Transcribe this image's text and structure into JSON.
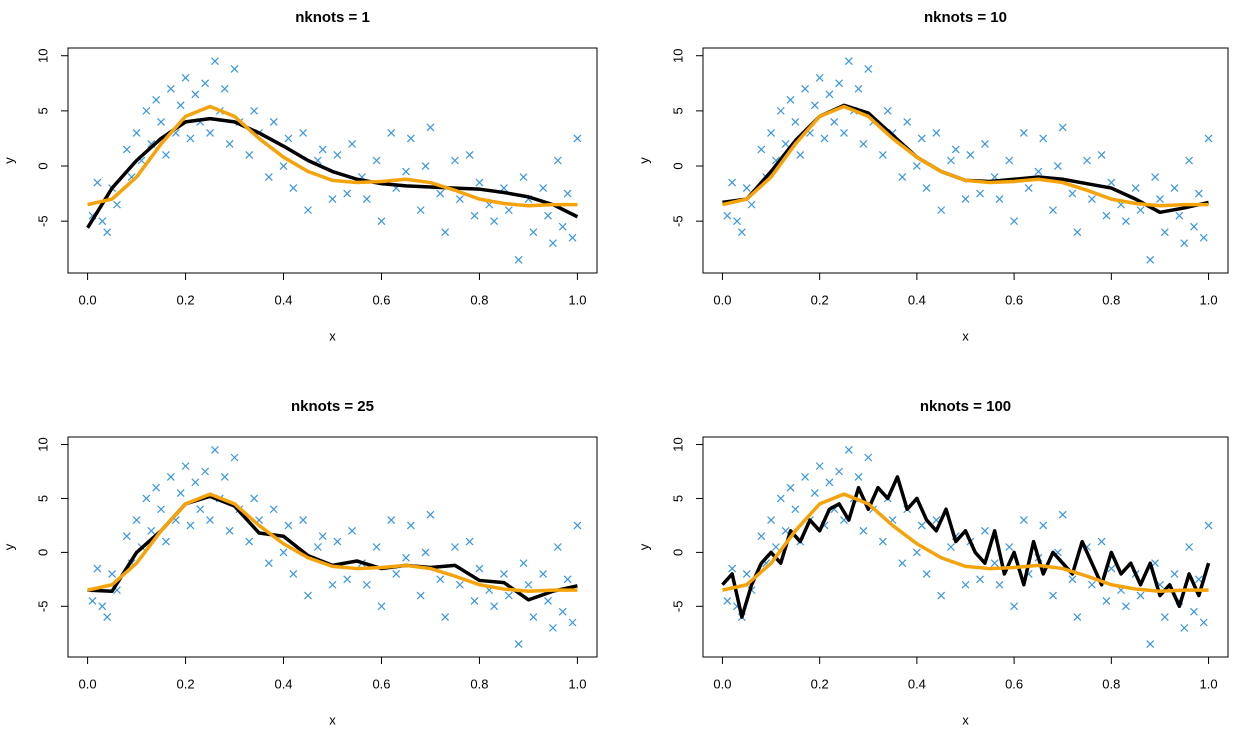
{
  "chart_data": [
    {
      "type": "scatter",
      "title": "nknots = 1",
      "xlabel": "x",
      "ylabel": "y",
      "xlim": [
        -0.04,
        1.04
      ],
      "ylim": [
        -9.7,
        10.7
      ],
      "xticks": [
        {
          "value": 0,
          "label": "0.0"
        },
        0.2,
        0.4,
        0.6,
        0.8,
        {
          "value": 1,
          "label": "1.0"
        }
      ],
      "yticks": [
        -5,
        0,
        5,
        10
      ],
      "points": {
        "color": "#3a96dd",
        "x": [
          0.01,
          0.02,
          0.03,
          0.04,
          0.05,
          0.06,
          0.08,
          0.09,
          0.1,
          0.11,
          0.12,
          0.13,
          0.14,
          0.15,
          0.16,
          0.17,
          0.18,
          0.19,
          0.2,
          0.21,
          0.22,
          0.23,
          0.24,
          0.25,
          0.26,
          0.27,
          0.28,
          0.29,
          0.3,
          0.31,
          0.33,
          0.34,
          0.35,
          0.37,
          0.38,
          0.4,
          0.41,
          0.42,
          0.44,
          0.45,
          0.47,
          0.48,
          0.5,
          0.51,
          0.53,
          0.54,
          0.56,
          0.57,
          0.59,
          0.6,
          0.62,
          0.63,
          0.65,
          0.66,
          0.68,
          0.69,
          0.7,
          0.72,
          0.73,
          0.75,
          0.76,
          0.78,
          0.79,
          0.8,
          0.82,
          0.83,
          0.85,
          0.86,
          0.88,
          0.89,
          0.9,
          0.91,
          0.93,
          0.94,
          0.95,
          0.96,
          0.97,
          0.98,
          0.99,
          1.0
        ],
        "y": [
          -4.5,
          -1.5,
          -5,
          -6,
          -2,
          -3.5,
          1.5,
          -1,
          3,
          0.5,
          5,
          2,
          6,
          4,
          1,
          7,
          3,
          5.5,
          8,
          2.5,
          6.5,
          4,
          7.5,
          3,
          9.5,
          5,
          7,
          2,
          8.8,
          4,
          1,
          5,
          3,
          -1,
          4,
          0,
          2.5,
          -2,
          3,
          -4,
          0.5,
          1.5,
          -3,
          1,
          -2.5,
          2,
          -1,
          -3,
          0.5,
          -5,
          3,
          -2,
          -0.5,
          2.5,
          -4,
          0,
          3.5,
          -2.5,
          -6,
          0.5,
          -3,
          1,
          -4.5,
          -1.5,
          -3.5,
          -5,
          -2,
          -4,
          -8.5,
          -1,
          -3,
          -6,
          -2,
          -4.5,
          -7,
          0.5,
          -5.5,
          -2.5,
          -6.5,
          2.5
        ]
      },
      "lines": [
        {
          "color": "#000000",
          "x": [
            0,
            0.05,
            0.1,
            0.15,
            0.2,
            0.25,
            0.3,
            0.35,
            0.4,
            0.45,
            0.5,
            0.55,
            0.6,
            0.65,
            0.7,
            0.75,
            0.8,
            0.85,
            0.9,
            0.95,
            1
          ],
          "values": [
            -5.6,
            -2,
            0.5,
            2.5,
            4,
            4.3,
            4,
            3,
            1.8,
            0.5,
            -0.5,
            -1.2,
            -1.6,
            -1.8,
            -1.9,
            -2,
            -2.1,
            -2.4,
            -2.8,
            -3.5,
            -4.6
          ]
        },
        {
          "color": "#f5a30a",
          "x": [
            0,
            0.05,
            0.1,
            0.15,
            0.2,
            0.25,
            0.3,
            0.35,
            0.4,
            0.45,
            0.5,
            0.55,
            0.6,
            0.65,
            0.7,
            0.75,
            0.8,
            0.85,
            0.9,
            0.95,
            1
          ],
          "values": [
            -3.5,
            -3,
            -1,
            2,
            4.5,
            5.4,
            4.5,
            2.5,
            0.8,
            -0.5,
            -1.3,
            -1.5,
            -1.4,
            -1.2,
            -1.5,
            -2.2,
            -3,
            -3.4,
            -3.6,
            -3.5,
            -3.5
          ]
        }
      ]
    },
    {
      "type": "scatter",
      "title": "nknots = 10",
      "xlabel": "x",
      "ylabel": "y",
      "xlim": [
        -0.04,
        1.04
      ],
      "ylim": [
        -9.7,
        10.7
      ],
      "xticks": [
        {
          "value": 0,
          "label": "0.0"
        },
        0.2,
        0.4,
        0.6,
        0.8,
        {
          "value": 1,
          "label": "1.0"
        }
      ],
      "yticks": [
        -5,
        0,
        5,
        10
      ],
      "points": {
        "color": "#3a96dd",
        "x": [
          0.01,
          0.02,
          0.03,
          0.04,
          0.05,
          0.06,
          0.08,
          0.09,
          0.1,
          0.11,
          0.12,
          0.13,
          0.14,
          0.15,
          0.16,
          0.17,
          0.18,
          0.19,
          0.2,
          0.21,
          0.22,
          0.23,
          0.24,
          0.25,
          0.26,
          0.27,
          0.28,
          0.29,
          0.3,
          0.31,
          0.33,
          0.34,
          0.35,
          0.37,
          0.38,
          0.4,
          0.41,
          0.42,
          0.44,
          0.45,
          0.47,
          0.48,
          0.5,
          0.51,
          0.53,
          0.54,
          0.56,
          0.57,
          0.59,
          0.6,
          0.62,
          0.63,
          0.65,
          0.66,
          0.68,
          0.69,
          0.7,
          0.72,
          0.73,
          0.75,
          0.76,
          0.78,
          0.79,
          0.8,
          0.82,
          0.83,
          0.85,
          0.86,
          0.88,
          0.89,
          0.9,
          0.91,
          0.93,
          0.94,
          0.95,
          0.96,
          0.97,
          0.98,
          0.99,
          1.0
        ],
        "y": [
          -4.5,
          -1.5,
          -5,
          -6,
          -2,
          -3.5,
          1.5,
          -1,
          3,
          0.5,
          5,
          2,
          6,
          4,
          1,
          7,
          3,
          5.5,
          8,
          2.5,
          6.5,
          4,
          7.5,
          3,
          9.5,
          5,
          7,
          2,
          8.8,
          4,
          1,
          5,
          3,
          -1,
          4,
          0,
          2.5,
          -2,
          3,
          -4,
          0.5,
          1.5,
          -3,
          1,
          -2.5,
          2,
          -1,
          -3,
          0.5,
          -5,
          3,
          -2,
          -0.5,
          2.5,
          -4,
          0,
          3.5,
          -2.5,
          -6,
          0.5,
          -3,
          1,
          -4.5,
          -1.5,
          -3.5,
          -5,
          -2,
          -4,
          -8.5,
          -1,
          -3,
          -6,
          -2,
          -4.5,
          -7,
          0.5,
          -5.5,
          -2.5,
          -6.5,
          2.5
        ]
      },
      "lines": [
        {
          "color": "#000000",
          "x": [
            0,
            0.05,
            0.1,
            0.15,
            0.2,
            0.25,
            0.3,
            0.35,
            0.4,
            0.45,
            0.5,
            0.55,
            0.6,
            0.65,
            0.7,
            0.75,
            0.8,
            0.85,
            0.9,
            0.95,
            1
          ],
          "values": [
            -3.3,
            -3,
            -0.5,
            2.3,
            4.5,
            5.5,
            4.8,
            2.8,
            0.8,
            -0.5,
            -1.3,
            -1.4,
            -1.2,
            -1,
            -1.2,
            -1.6,
            -2,
            -3,
            -4.2,
            -3.8,
            -3.3
          ]
        },
        {
          "color": "#f5a30a",
          "x": [
            0,
            0.05,
            0.1,
            0.15,
            0.2,
            0.25,
            0.3,
            0.35,
            0.4,
            0.45,
            0.5,
            0.55,
            0.6,
            0.65,
            0.7,
            0.75,
            0.8,
            0.85,
            0.9,
            0.95,
            1
          ],
          "values": [
            -3.5,
            -3,
            -1,
            2,
            4.5,
            5.4,
            4.5,
            2.5,
            0.8,
            -0.5,
            -1.3,
            -1.5,
            -1.4,
            -1.2,
            -1.5,
            -2.2,
            -3,
            -3.4,
            -3.6,
            -3.5,
            -3.5
          ]
        }
      ]
    },
    {
      "type": "scatter",
      "title": "nknots = 25",
      "xlabel": "x",
      "ylabel": "y",
      "xlim": [
        -0.04,
        1.04
      ],
      "ylim": [
        -9.7,
        10.7
      ],
      "xticks": [
        {
          "value": 0,
          "label": "0.0"
        },
        0.2,
        0.4,
        0.6,
        0.8,
        {
          "value": 1,
          "label": "1.0"
        }
      ],
      "yticks": [
        -5,
        0,
        5,
        10
      ],
      "points": {
        "color": "#3a96dd",
        "x": [
          0.01,
          0.02,
          0.03,
          0.04,
          0.05,
          0.06,
          0.08,
          0.09,
          0.1,
          0.11,
          0.12,
          0.13,
          0.14,
          0.15,
          0.16,
          0.17,
          0.18,
          0.19,
          0.2,
          0.21,
          0.22,
          0.23,
          0.24,
          0.25,
          0.26,
          0.27,
          0.28,
          0.29,
          0.3,
          0.31,
          0.33,
          0.34,
          0.35,
          0.37,
          0.38,
          0.4,
          0.41,
          0.42,
          0.44,
          0.45,
          0.47,
          0.48,
          0.5,
          0.51,
          0.53,
          0.54,
          0.56,
          0.57,
          0.59,
          0.6,
          0.62,
          0.63,
          0.65,
          0.66,
          0.68,
          0.69,
          0.7,
          0.72,
          0.73,
          0.75,
          0.76,
          0.78,
          0.79,
          0.8,
          0.82,
          0.83,
          0.85,
          0.86,
          0.88,
          0.89,
          0.9,
          0.91,
          0.93,
          0.94,
          0.95,
          0.96,
          0.97,
          0.98,
          0.99,
          1.0
        ],
        "y": [
          -4.5,
          -1.5,
          -5,
          -6,
          -2,
          -3.5,
          1.5,
          -1,
          3,
          0.5,
          5,
          2,
          6,
          4,
          1,
          7,
          3,
          5.5,
          8,
          2.5,
          6.5,
          4,
          7.5,
          3,
          9.5,
          5,
          7,
          2,
          8.8,
          4,
          1,
          5,
          3,
          -1,
          4,
          0,
          2.5,
          -2,
          3,
          -4,
          0.5,
          1.5,
          -3,
          1,
          -2.5,
          2,
          -1,
          -3,
          0.5,
          -5,
          3,
          -2,
          -0.5,
          2.5,
          -4,
          0,
          3.5,
          -2.5,
          -6,
          0.5,
          -3,
          1,
          -4.5,
          -1.5,
          -3.5,
          -5,
          -2,
          -4,
          -8.5,
          -1,
          -3,
          -6,
          -2,
          -4.5,
          -7,
          0.5,
          -5.5,
          -2.5,
          -6.5,
          2.5
        ]
      },
      "lines": [
        {
          "color": "#000000",
          "x": [
            0,
            0.05,
            0.1,
            0.15,
            0.2,
            0.25,
            0.3,
            0.35,
            0.4,
            0.45,
            0.5,
            0.55,
            0.6,
            0.65,
            0.7,
            0.75,
            0.8,
            0.85,
            0.9,
            0.95,
            1
          ],
          "values": [
            -3.5,
            -3.6,
            0,
            2,
            4.5,
            5.2,
            4.3,
            1.8,
            1.5,
            -0.3,
            -1.2,
            -0.8,
            -1.5,
            -1.2,
            -1.4,
            -1.2,
            -2.6,
            -2.8,
            -4.4,
            -3.6,
            -3.1
          ]
        },
        {
          "color": "#f5a30a",
          "x": [
            0,
            0.05,
            0.1,
            0.15,
            0.2,
            0.25,
            0.3,
            0.35,
            0.4,
            0.45,
            0.5,
            0.55,
            0.6,
            0.65,
            0.7,
            0.75,
            0.8,
            0.85,
            0.9,
            0.95,
            1
          ],
          "values": [
            -3.5,
            -3,
            -1,
            2,
            4.5,
            5.4,
            4.5,
            2.5,
            0.8,
            -0.5,
            -1.3,
            -1.5,
            -1.4,
            -1.2,
            -1.5,
            -2.2,
            -3,
            -3.4,
            -3.6,
            -3.5,
            -3.5
          ]
        }
      ]
    },
    {
      "type": "scatter",
      "title": "nknots = 100",
      "xlabel": "x",
      "ylabel": "y",
      "xlim": [
        -0.04,
        1.04
      ],
      "ylim": [
        -9.7,
        10.7
      ],
      "xticks": [
        {
          "value": 0,
          "label": "0.0"
        },
        0.2,
        0.4,
        0.6,
        0.8,
        {
          "value": 1,
          "label": "1.0"
        }
      ],
      "yticks": [
        -5,
        0,
        5,
        10
      ],
      "points": {
        "color": "#3a96dd",
        "x": [
          0.01,
          0.02,
          0.03,
          0.04,
          0.05,
          0.06,
          0.08,
          0.09,
          0.1,
          0.11,
          0.12,
          0.13,
          0.14,
          0.15,
          0.16,
          0.17,
          0.18,
          0.19,
          0.2,
          0.21,
          0.22,
          0.23,
          0.24,
          0.25,
          0.26,
          0.27,
          0.28,
          0.29,
          0.3,
          0.31,
          0.33,
          0.34,
          0.35,
          0.37,
          0.38,
          0.4,
          0.41,
          0.42,
          0.44,
          0.45,
          0.47,
          0.48,
          0.5,
          0.51,
          0.53,
          0.54,
          0.56,
          0.57,
          0.59,
          0.6,
          0.62,
          0.63,
          0.65,
          0.66,
          0.68,
          0.69,
          0.7,
          0.72,
          0.73,
          0.75,
          0.76,
          0.78,
          0.79,
          0.8,
          0.82,
          0.83,
          0.85,
          0.86,
          0.88,
          0.89,
          0.9,
          0.91,
          0.93,
          0.94,
          0.95,
          0.96,
          0.97,
          0.98,
          0.99,
          1.0
        ],
        "y": [
          -4.5,
          -1.5,
          -5,
          -6,
          -2,
          -3.5,
          1.5,
          -1,
          3,
          0.5,
          5,
          2,
          6,
          4,
          1,
          7,
          3,
          5.5,
          8,
          2.5,
          6.5,
          4,
          7.5,
          3,
          9.5,
          5,
          7,
          2,
          8.8,
          4,
          1,
          5,
          3,
          -1,
          4,
          0,
          2.5,
          -2,
          3,
          -4,
          0.5,
          1.5,
          -3,
          1,
          -2.5,
          2,
          -1,
          -3,
          0.5,
          -5,
          3,
          -2,
          -0.5,
          2.5,
          -4,
          0,
          3.5,
          -2.5,
          -6,
          0.5,
          -3,
          1,
          -4.5,
          -1.5,
          -3.5,
          -5,
          -2,
          -4,
          -8.5,
          -1,
          -3,
          -6,
          -2,
          -4.5,
          -7,
          0.5,
          -5.5,
          -2.5,
          -6.5,
          2.5
        ]
      },
      "lines": [
        {
          "color": "#000000",
          "x": [
            0,
            0.02,
            0.04,
            0.06,
            0.08,
            0.1,
            0.12,
            0.14,
            0.16,
            0.18,
            0.2,
            0.22,
            0.24,
            0.26,
            0.28,
            0.3,
            0.32,
            0.34,
            0.36,
            0.38,
            0.4,
            0.42,
            0.44,
            0.46,
            0.48,
            0.5,
            0.52,
            0.54,
            0.56,
            0.58,
            0.6,
            0.62,
            0.64,
            0.66,
            0.68,
            0.7,
            0.72,
            0.74,
            0.76,
            0.78,
            0.8,
            0.82,
            0.84,
            0.86,
            0.88,
            0.9,
            0.92,
            0.94,
            0.96,
            0.98,
            1
          ],
          "values": [
            -3,
            -2,
            -6,
            -3,
            -1,
            0,
            -1,
            2,
            1,
            3,
            2,
            4,
            4.5,
            3,
            6,
            4,
            6,
            5,
            7,
            4,
            5,
            3,
            2,
            4,
            1,
            2,
            0,
            -1,
            2,
            -2,
            0,
            -3,
            1,
            -2,
            0,
            -1,
            -2,
            1,
            -1,
            -3,
            0,
            -2,
            -1,
            -3,
            -1,
            -4,
            -3,
            -5,
            -2,
            -4,
            -1
          ]
        },
        {
          "color": "#f5a30a",
          "x": [
            0,
            0.05,
            0.1,
            0.15,
            0.2,
            0.25,
            0.3,
            0.35,
            0.4,
            0.45,
            0.5,
            0.55,
            0.6,
            0.65,
            0.7,
            0.75,
            0.8,
            0.85,
            0.9,
            0.95,
            1
          ],
          "values": [
            -3.5,
            -3,
            -1,
            2,
            4.5,
            5.4,
            4.5,
            2.5,
            0.8,
            -0.5,
            -1.3,
            -1.5,
            -1.4,
            -1.2,
            -1.5,
            -2.2,
            -3,
            -3.4,
            -3.6,
            -3.5,
            -3.5
          ]
        }
      ]
    }
  ]
}
